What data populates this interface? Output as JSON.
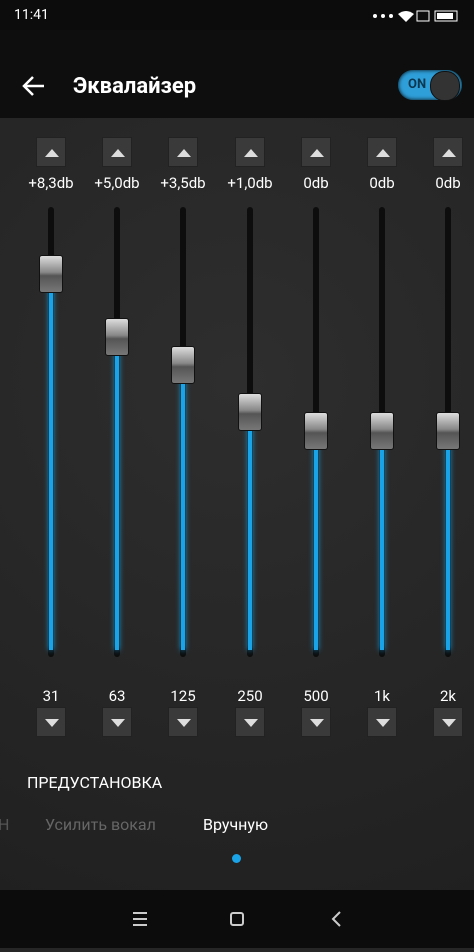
{
  "status_bar": {
    "time": "11:41"
  },
  "header": {
    "title": "Эквалайзер",
    "toggle": "ON"
  },
  "bands": [
    {
      "gain": "+8,3db",
      "frequency": "31"
    },
    {
      "gain": "+5,0db",
      "frequency": "63"
    },
    {
      "gain": "+3,5db",
      "frequency": "125"
    },
    {
      "gain": "+1,0db",
      "frequency": "250"
    },
    {
      "gain": "0db",
      "frequency": "500"
    },
    {
      "gain": "0db",
      "frequency": "1k"
    },
    {
      "gain": "0db",
      "frequency": "2k"
    }
  ],
  "preset": {
    "title": "ПРЕДУСТАНОВКА",
    "options": [
      "Н",
      "Усилить вокал",
      "Вручную"
    ]
  }
}
